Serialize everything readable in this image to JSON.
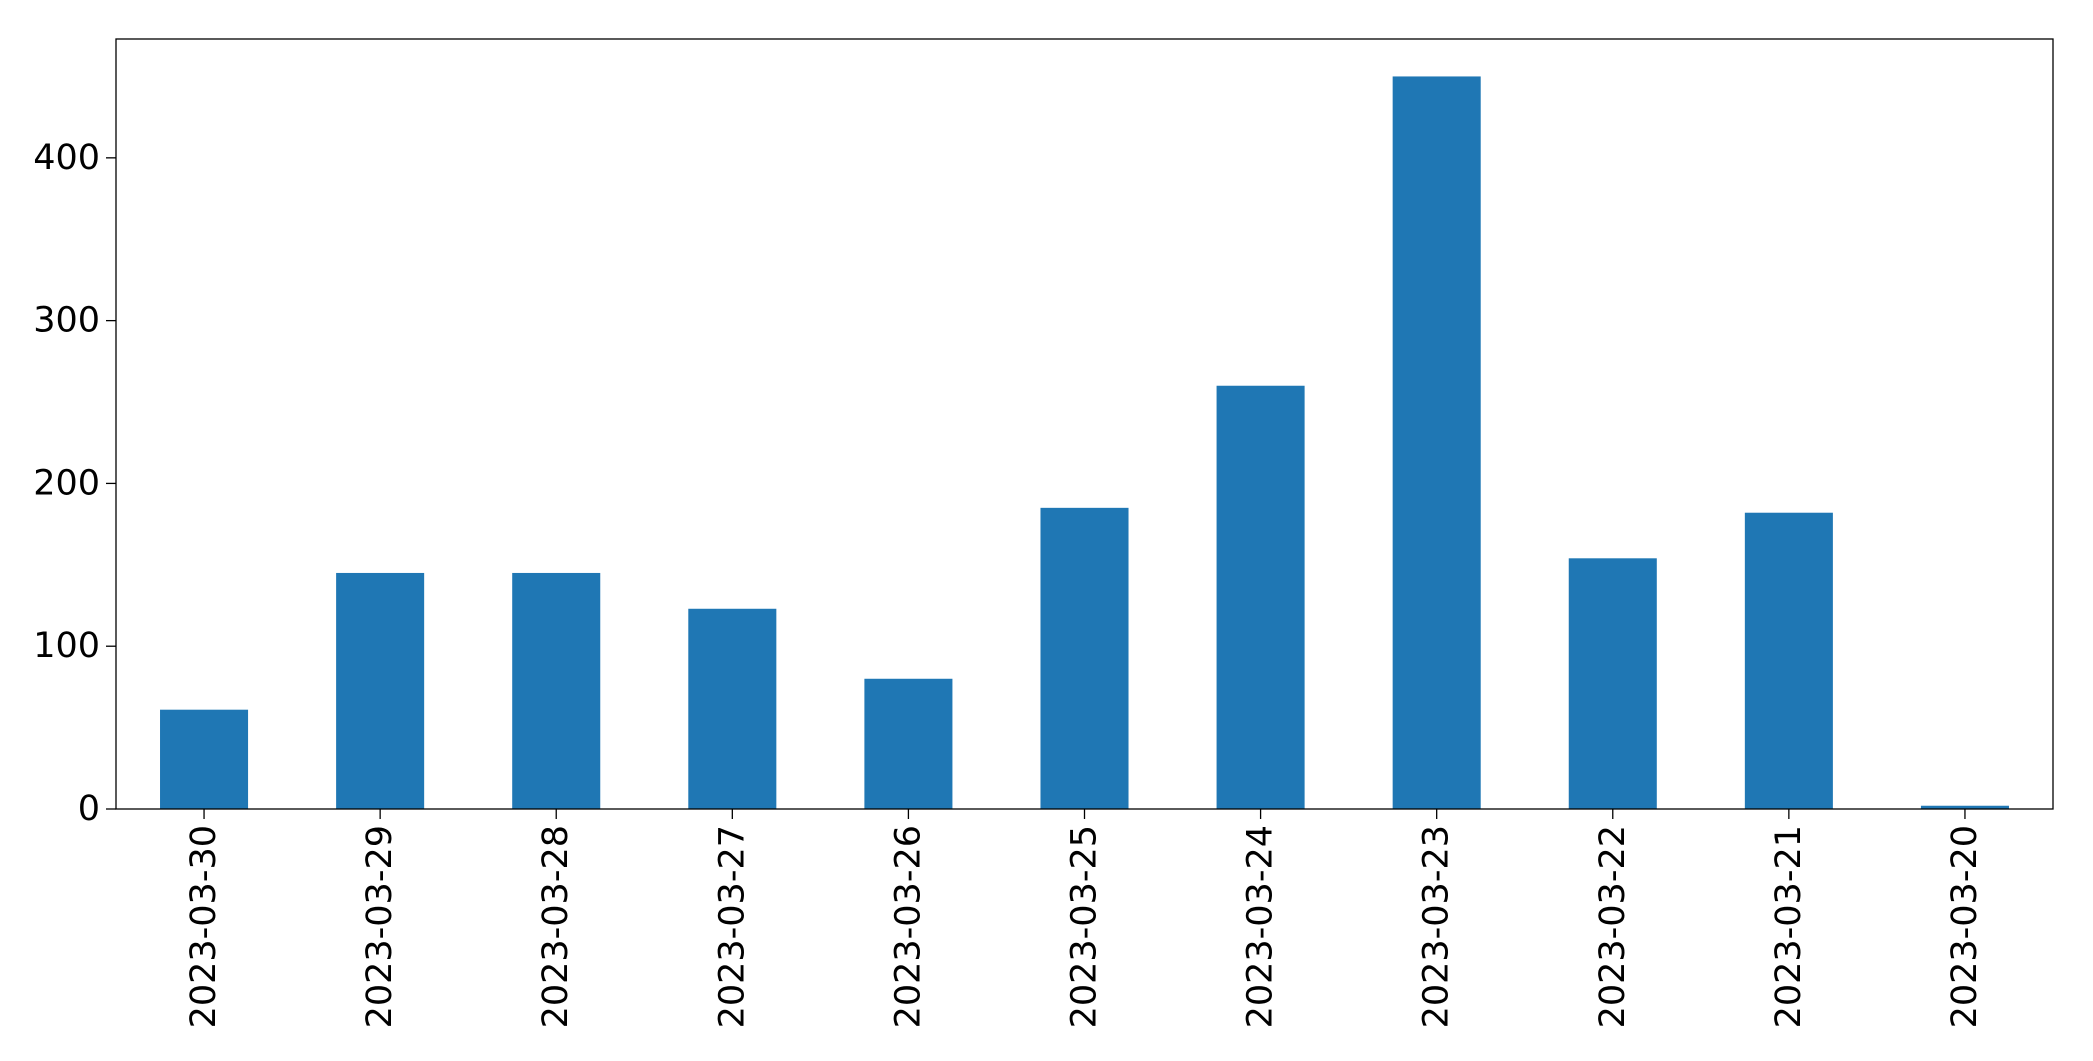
{
  "chart_data": {
    "type": "bar",
    "categories": [
      "2023-03-30",
      "2023-03-29",
      "2023-03-28",
      "2023-03-27",
      "2023-03-26",
      "2023-03-25",
      "2023-03-24",
      "2023-03-23",
      "2023-03-22",
      "2023-03-21",
      "2023-03-20"
    ],
    "values": [
      61,
      145,
      145,
      123,
      80,
      185,
      260,
      450,
      154,
      182,
      2
    ],
    "color": "#1f77b4",
    "ylim": [
      0,
      473
    ],
    "yticks": [
      0,
      100,
      200,
      300,
      400
    ],
    "grid": false
  }
}
